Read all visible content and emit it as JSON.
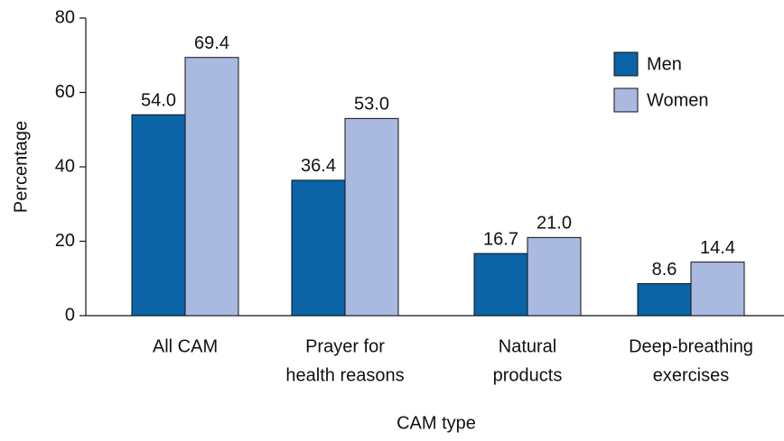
{
  "chart_data": {
    "type": "bar",
    "categories": [
      [
        "All CAM"
      ],
      [
        "Prayer for",
        "health reasons"
      ],
      [
        "Natural",
        "products"
      ],
      [
        "Deep-breathing",
        "exercises"
      ]
    ],
    "series": [
      {
        "name": "Men",
        "color": "#0a64a6",
        "values": [
          54.0,
          36.4,
          16.7,
          8.6
        ],
        "value_labels": [
          "54.0",
          "36.4",
          "16.7",
          "8.6"
        ]
      },
      {
        "name": "Women",
        "color": "#aab9df",
        "values": [
          69.4,
          53.0,
          21.0,
          14.4
        ],
        "value_labels": [
          "69.4",
          "53.0",
          "21.0",
          "14.4"
        ]
      }
    ],
    "x_label": "CAM type",
    "y_label": "Percentage",
    "ylim": [
      0,
      80
    ],
    "yticks": [
      0,
      20,
      40,
      60,
      80
    ],
    "grid": false,
    "legend": "upper right"
  }
}
